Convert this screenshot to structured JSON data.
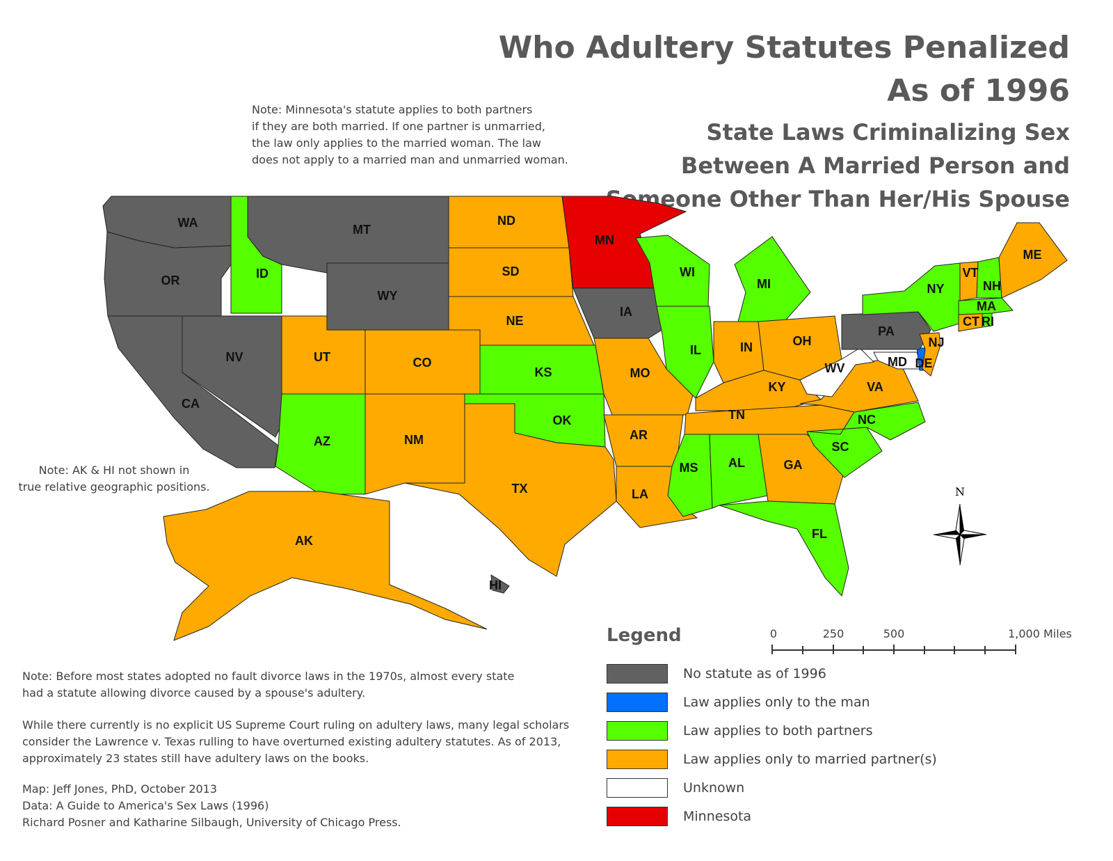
{
  "title": {
    "line1": "Who Adultery Statutes Penalized",
    "line2": "As of 1996"
  },
  "subtitle": {
    "line1": "State Laws Criminalizing Sex",
    "line2": "Between A Married Person and",
    "line3": "Someone Other Than Her/His Spouse"
  },
  "notes": {
    "minnesota": [
      "Note:  Minnesota's statute applies to both partners",
      "if they are both married.  If one partner is unmarried,",
      "the law only applies to the married woman.  The law",
      "does not apply to a married man and unmarried woman."
    ],
    "ak_hi": [
      "Note:  AK & HI not shown in",
      "true relative geographic positions."
    ],
    "divorce": [
      "Note:  Before most states adopted no fault divorce laws in the 1970s, almost every state",
      "had a statute allowing divorce caused by a spouse's adultery."
    ],
    "supreme_court": [
      "While there currently is no explicit US Supreme Court ruling on adultery laws, many legal scholars",
      "consider the Lawrence v. Texas rulling to have overturned existing adultery statutes. As of 2013,",
      "approximately 23 states still have adultery laws on the books."
    ],
    "credits": [
      "Map:  Jeff Jones, PhD, October 2013",
      "Data:  A Guide to America's Sex Laws (1996)",
      "Richard Posner and Katharine Silbaugh, University of Chicago Press."
    ]
  },
  "legend": {
    "title": "Legend",
    "items": [
      {
        "key": "none",
        "label": "No statute as of 1996",
        "color": "#616161"
      },
      {
        "key": "man",
        "label": "Law applies only to the man",
        "color": "#0070ff"
      },
      {
        "key": "both",
        "label": "Law applies to both partners",
        "color": "#55ff00"
      },
      {
        "key": "married",
        "label": "Law applies only to married partner(s)",
        "color": "#ffaa00"
      },
      {
        "key": "unknown",
        "label": "Unknown",
        "color": "#ffffff"
      },
      {
        "key": "mn",
        "label": "Minnesota",
        "color": "#e60000"
      }
    ]
  },
  "scale_bar": {
    "ticks": [
      "0",
      "250",
      "500",
      "1,000 Miles"
    ]
  },
  "north_arrow": {
    "label": "N",
    "icon": "compass-rose-icon"
  },
  "states": [
    {
      "abbr": "WA",
      "category": "none"
    },
    {
      "abbr": "OR",
      "category": "none"
    },
    {
      "abbr": "CA",
      "category": "none"
    },
    {
      "abbr": "NV",
      "category": "none"
    },
    {
      "abbr": "ID",
      "category": "both"
    },
    {
      "abbr": "MT",
      "category": "none"
    },
    {
      "abbr": "WY",
      "category": "none"
    },
    {
      "abbr": "UT",
      "category": "married"
    },
    {
      "abbr": "CO",
      "category": "married"
    },
    {
      "abbr": "AZ",
      "category": "both"
    },
    {
      "abbr": "NM",
      "category": "married"
    },
    {
      "abbr": "ND",
      "category": "married"
    },
    {
      "abbr": "SD",
      "category": "married"
    },
    {
      "abbr": "NE",
      "category": "married"
    },
    {
      "abbr": "KS",
      "category": "both"
    },
    {
      "abbr": "OK",
      "category": "both"
    },
    {
      "abbr": "TX",
      "category": "married"
    },
    {
      "abbr": "MN",
      "category": "mn"
    },
    {
      "abbr": "IA",
      "category": "none"
    },
    {
      "abbr": "MO",
      "category": "married"
    },
    {
      "abbr": "AR",
      "category": "married"
    },
    {
      "abbr": "LA",
      "category": "married"
    },
    {
      "abbr": "WI",
      "category": "both"
    },
    {
      "abbr": "IL",
      "category": "both"
    },
    {
      "abbr": "MI",
      "category": "both"
    },
    {
      "abbr": "IN",
      "category": "married"
    },
    {
      "abbr": "OH",
      "category": "married"
    },
    {
      "abbr": "KY",
      "category": "married"
    },
    {
      "abbr": "TN",
      "category": "married"
    },
    {
      "abbr": "MS",
      "category": "both"
    },
    {
      "abbr": "AL",
      "category": "both"
    },
    {
      "abbr": "GA",
      "category": "married"
    },
    {
      "abbr": "FL",
      "category": "both"
    },
    {
      "abbr": "SC",
      "category": "both"
    },
    {
      "abbr": "NC",
      "category": "both"
    },
    {
      "abbr": "VA",
      "category": "married"
    },
    {
      "abbr": "WV",
      "category": "unknown"
    },
    {
      "abbr": "MD",
      "category": "unknown"
    },
    {
      "abbr": "DE",
      "category": "man"
    },
    {
      "abbr": "PA",
      "category": "none"
    },
    {
      "abbr": "NJ",
      "category": "married"
    },
    {
      "abbr": "NY",
      "category": "both"
    },
    {
      "abbr": "CT",
      "category": "married"
    },
    {
      "abbr": "RI",
      "category": "both"
    },
    {
      "abbr": "MA",
      "category": "both"
    },
    {
      "abbr": "VT",
      "category": "married"
    },
    {
      "abbr": "NH",
      "category": "both"
    },
    {
      "abbr": "ME",
      "category": "married"
    },
    {
      "abbr": "AK",
      "category": "married"
    },
    {
      "abbr": "HI",
      "category": "none"
    }
  ]
}
